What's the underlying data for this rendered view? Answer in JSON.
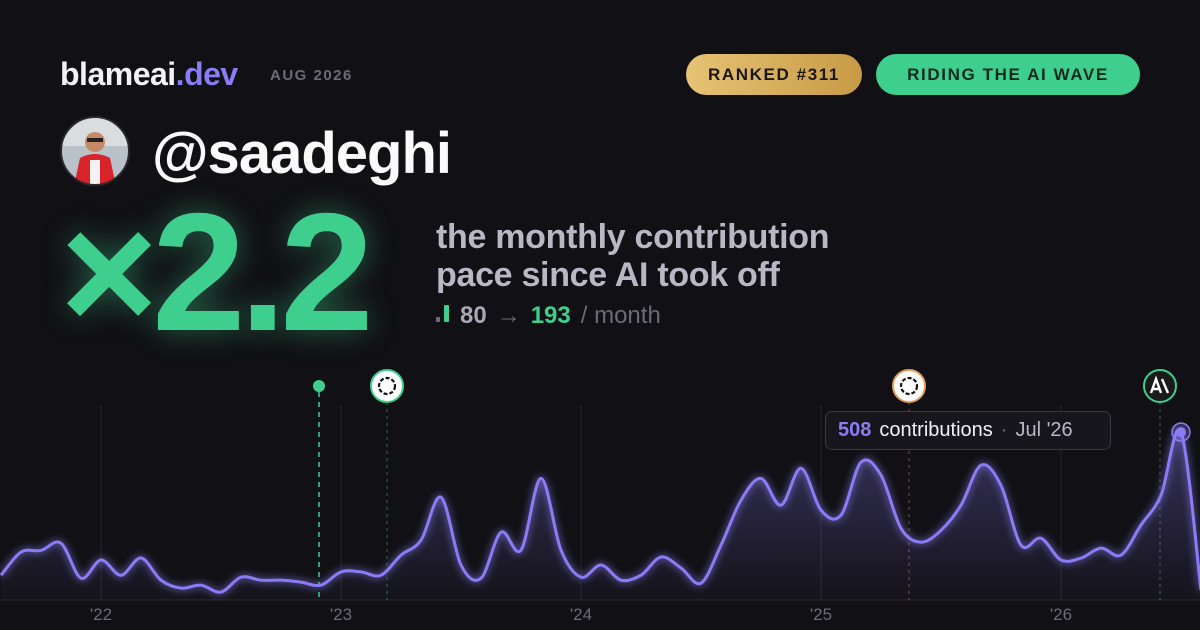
{
  "header": {
    "brand": "blameai",
    "brand_tld": ".dev",
    "date": "AUG 2026",
    "badges": [
      "RANKED #311",
      "RIDING THE AI WAVE"
    ]
  },
  "profile": {
    "handle": "@saadeghi"
  },
  "headline": {
    "multiplier": "×2.2",
    "description": [
      "the monthly contribution",
      "pace since AI took off"
    ],
    "before": 80,
    "arrow": "→",
    "after": 193,
    "unit": "/ month"
  },
  "tooltip": {
    "label": "contributions",
    "separator": "·",
    "date": "Jul '26"
  },
  "chart_data": {
    "type": "line",
    "color": "#8b7cf6",
    "categories": [
      null,
      null,
      null,
      null,
      null,
      "'22",
      null,
      null,
      null,
      null,
      null,
      null,
      null,
      null,
      null,
      null,
      null,
      "'23",
      null,
      null,
      null,
      null,
      null,
      null,
      null,
      null,
      null,
      null,
      null,
      "'24",
      null,
      null,
      null,
      null,
      null,
      null,
      null,
      null,
      null,
      null,
      null,
      "'25",
      null,
      null,
      null,
      null,
      null,
      null,
      null,
      null,
      null,
      null,
      null,
      "'26",
      null,
      null,
      null,
      null,
      null,
      null,
      null
    ],
    "values": [
      75,
      145,
      150,
      172,
      66,
      121,
      75,
      127,
      60,
      36,
      45,
      24,
      69,
      60,
      60,
      54,
      45,
      85,
      85,
      75,
      136,
      181,
      311,
      106,
      66,
      205,
      151,
      368,
      151,
      69,
      106,
      60,
      75,
      130,
      97,
      51,
      166,
      302,
      368,
      287,
      399,
      272,
      257,
      417,
      378,
      217,
      175,
      211,
      287,
      408,
      347,
      166,
      187,
      121,
      127,
      157,
      136,
      227,
      317,
      508,
      30
    ],
    "ylim": [
      0,
      560
    ]
  }
}
